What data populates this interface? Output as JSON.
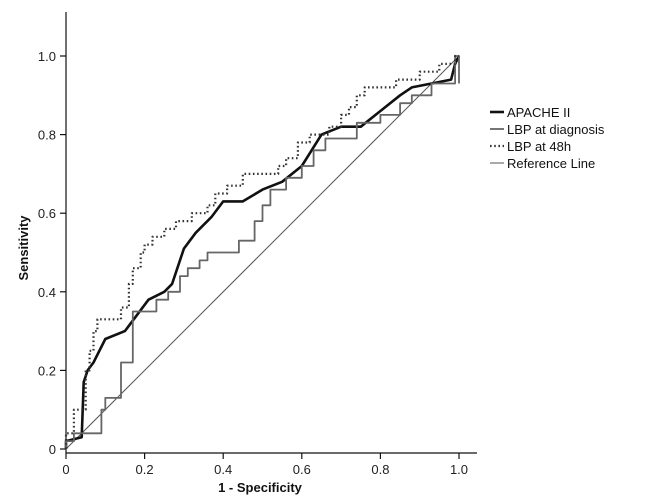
{
  "chart_data": {
    "type": "line",
    "title": "",
    "xlabel": "1 - Specificity",
    "ylabel": "Sensitivity",
    "xlim": [
      0,
      1
    ],
    "ylim": [
      0,
      1
    ],
    "x_ticks": [
      "0",
      "0.2",
      "0.4",
      "0.6",
      "0.8",
      "1.0"
    ],
    "y_ticks": [
      "0",
      "0.2",
      "0.4",
      "0.6",
      "0.8",
      "1.0"
    ],
    "grid": false,
    "legend": "right",
    "series": [
      {
        "name": "APACHE II",
        "style": "solid-thick",
        "color": "#111111",
        "points": [
          [
            0,
            0
          ],
          [
            0,
            0.02
          ],
          [
            0.04,
            0.03
          ],
          [
            0.045,
            0.17
          ],
          [
            0.055,
            0.2
          ],
          [
            0.07,
            0.22
          ],
          [
            0.1,
            0.28
          ],
          [
            0.15,
            0.3
          ],
          [
            0.21,
            0.38
          ],
          [
            0.25,
            0.4
          ],
          [
            0.27,
            0.42
          ],
          [
            0.3,
            0.51
          ],
          [
            0.33,
            0.55
          ],
          [
            0.37,
            0.59
          ],
          [
            0.4,
            0.63
          ],
          [
            0.45,
            0.63
          ],
          [
            0.5,
            0.66
          ],
          [
            0.55,
            0.68
          ],
          [
            0.6,
            0.72
          ],
          [
            0.65,
            0.8
          ],
          [
            0.7,
            0.82
          ],
          [
            0.75,
            0.82
          ],
          [
            0.8,
            0.86
          ],
          [
            0.85,
            0.9
          ],
          [
            0.88,
            0.92
          ],
          [
            0.93,
            0.93
          ],
          [
            0.98,
            0.94
          ],
          [
            0.99,
            0.98
          ],
          [
            1.0,
            1.0
          ]
        ]
      },
      {
        "name": "LBP at diagnosis",
        "style": "step-thin",
        "color": "#666666",
        "points": [
          [
            0,
            0
          ],
          [
            0,
            0.02
          ],
          [
            0.02,
            0.02
          ],
          [
            0.02,
            0.04
          ],
          [
            0.09,
            0.04
          ],
          [
            0.09,
            0.1
          ],
          [
            0.1,
            0.1
          ],
          [
            0.1,
            0.13
          ],
          [
            0.14,
            0.13
          ],
          [
            0.14,
            0.22
          ],
          [
            0.17,
            0.22
          ],
          [
            0.17,
            0.35
          ],
          [
            0.23,
            0.35
          ],
          [
            0.23,
            0.38
          ],
          [
            0.26,
            0.38
          ],
          [
            0.26,
            0.4
          ],
          [
            0.29,
            0.4
          ],
          [
            0.29,
            0.44
          ],
          [
            0.31,
            0.44
          ],
          [
            0.31,
            0.46
          ],
          [
            0.34,
            0.46
          ],
          [
            0.34,
            0.48
          ],
          [
            0.36,
            0.48
          ],
          [
            0.36,
            0.5
          ],
          [
            0.44,
            0.5
          ],
          [
            0.44,
            0.53
          ],
          [
            0.48,
            0.53
          ],
          [
            0.48,
            0.58
          ],
          [
            0.5,
            0.58
          ],
          [
            0.5,
            0.62
          ],
          [
            0.52,
            0.62
          ],
          [
            0.52,
            0.66
          ],
          [
            0.56,
            0.66
          ],
          [
            0.56,
            0.69
          ],
          [
            0.6,
            0.69
          ],
          [
            0.6,
            0.72
          ],
          [
            0.63,
            0.72
          ],
          [
            0.63,
            0.76
          ],
          [
            0.66,
            0.76
          ],
          [
            0.66,
            0.79
          ],
          [
            0.74,
            0.79
          ],
          [
            0.74,
            0.83
          ],
          [
            0.8,
            0.83
          ],
          [
            0.8,
            0.85
          ],
          [
            0.85,
            0.85
          ],
          [
            0.85,
            0.88
          ],
          [
            0.88,
            0.88
          ],
          [
            0.88,
            0.9
          ],
          [
            0.93,
            0.9
          ],
          [
            0.93,
            0.93
          ],
          [
            0.99,
            0.93
          ],
          [
            0.99,
            1.0
          ],
          [
            1.0,
            1.0
          ],
          [
            1.0,
            0.93
          ]
        ]
      },
      {
        "name": "LBP at 48h",
        "style": "dotted",
        "color": "#333333",
        "points": [
          [
            0,
            0
          ],
          [
            0,
            0.04
          ],
          [
            0.02,
            0.04
          ],
          [
            0.02,
            0.1
          ],
          [
            0.05,
            0.1
          ],
          [
            0.05,
            0.2
          ],
          [
            0.06,
            0.2
          ],
          [
            0.06,
            0.25
          ],
          [
            0.07,
            0.25
          ],
          [
            0.07,
            0.3
          ],
          [
            0.08,
            0.3
          ],
          [
            0.08,
            0.33
          ],
          [
            0.14,
            0.33
          ],
          [
            0.14,
            0.36
          ],
          [
            0.16,
            0.36
          ],
          [
            0.16,
            0.42
          ],
          [
            0.17,
            0.42
          ],
          [
            0.17,
            0.46
          ],
          [
            0.19,
            0.46
          ],
          [
            0.19,
            0.5
          ],
          [
            0.2,
            0.5
          ],
          [
            0.2,
            0.52
          ],
          [
            0.22,
            0.52
          ],
          [
            0.22,
            0.54
          ],
          [
            0.25,
            0.54
          ],
          [
            0.25,
            0.56
          ],
          [
            0.28,
            0.56
          ],
          [
            0.28,
            0.58
          ],
          [
            0.32,
            0.58
          ],
          [
            0.32,
            0.6
          ],
          [
            0.36,
            0.6
          ],
          [
            0.36,
            0.62
          ],
          [
            0.38,
            0.62
          ],
          [
            0.38,
            0.65
          ],
          [
            0.41,
            0.65
          ],
          [
            0.41,
            0.67
          ],
          [
            0.45,
            0.67
          ],
          [
            0.45,
            0.7
          ],
          [
            0.54,
            0.7
          ],
          [
            0.54,
            0.72
          ],
          [
            0.56,
            0.72
          ],
          [
            0.56,
            0.74
          ],
          [
            0.59,
            0.74
          ],
          [
            0.59,
            0.78
          ],
          [
            0.62,
            0.78
          ],
          [
            0.62,
            0.8
          ],
          [
            0.67,
            0.8
          ],
          [
            0.67,
            0.82
          ],
          [
            0.7,
            0.82
          ],
          [
            0.7,
            0.85
          ],
          [
            0.72,
            0.85
          ],
          [
            0.72,
            0.87
          ],
          [
            0.74,
            0.87
          ],
          [
            0.74,
            0.9
          ],
          [
            0.76,
            0.9
          ],
          [
            0.76,
            0.92
          ],
          [
            0.84,
            0.92
          ],
          [
            0.84,
            0.94
          ],
          [
            0.9,
            0.94
          ],
          [
            0.9,
            0.96
          ],
          [
            0.95,
            0.96
          ],
          [
            0.95,
            0.98
          ],
          [
            0.99,
            0.98
          ],
          [
            0.99,
            1.0
          ],
          [
            1.0,
            1.0
          ]
        ]
      },
      {
        "name": "Reference Line",
        "style": "solid-thin",
        "color": "#555555",
        "points": [
          [
            0,
            0
          ],
          [
            1,
            1
          ]
        ]
      }
    ]
  }
}
